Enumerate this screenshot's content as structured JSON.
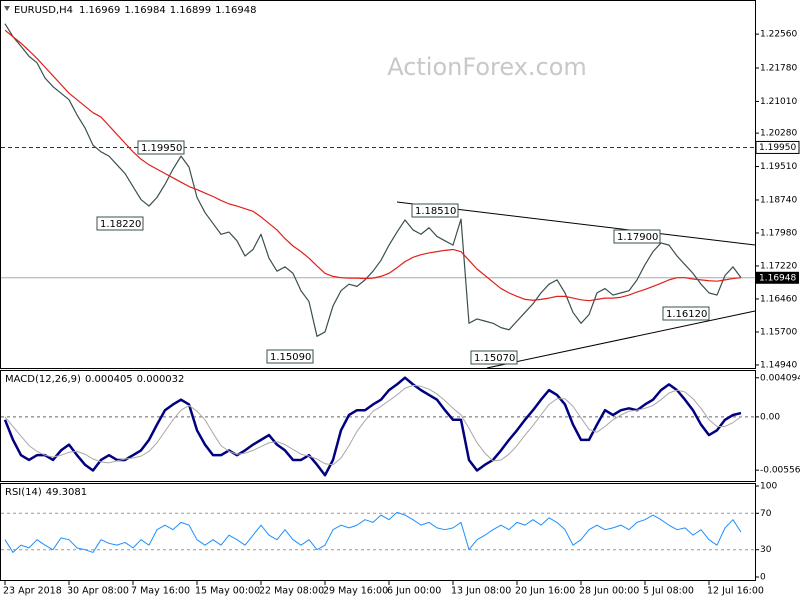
{
  "watermark": "ActionForex.com",
  "chart_data": [
    {
      "type": "line",
      "title": "EURUSD,H4",
      "ohlc_last": [
        1.16969,
        1.16984,
        1.16899,
        1.16948
      ],
      "categories": [
        "23 Apr 2018",
        null,
        null,
        null,
        null,
        null,
        null,
        null,
        "30 Apr 08:00",
        null,
        null,
        null,
        null,
        null,
        null,
        null,
        "7 May 16:00",
        null,
        null,
        null,
        null,
        null,
        null,
        null,
        "15 May 00:00",
        null,
        null,
        null,
        null,
        null,
        null,
        null,
        "22 May 08:00",
        null,
        null,
        null,
        null,
        null,
        null,
        null,
        "29 May 16:00",
        null,
        null,
        null,
        null,
        null,
        null,
        null,
        "6 Jun 00:00",
        null,
        null,
        null,
        null,
        null,
        null,
        null,
        "13 Jun 08:00",
        null,
        null,
        null,
        null,
        null,
        null,
        null,
        "20 Jun 16:00",
        null,
        null,
        null,
        null,
        null,
        null,
        null,
        "28 Jun 00:00",
        null,
        null,
        null,
        null,
        null,
        null,
        null,
        "5 Jul 08:00",
        null,
        null,
        null,
        null,
        null,
        null,
        null,
        "12 Jul 16:00",
        null,
        null,
        null,
        null
      ],
      "series": [
        {
          "color": "#3a4f4f",
          "values": [
            1.228,
            1.225,
            1.2228,
            1.2205,
            1.219,
            1.2155,
            1.2135,
            1.212,
            1.2105,
            1.207,
            1.204,
            1.2,
            1.1985,
            1.1975,
            1.1955,
            1.1935,
            1.1905,
            1.1875,
            1.186,
            1.188,
            1.191,
            1.1945,
            1.1975,
            1.195,
            1.188,
            1.1845,
            1.182,
            1.1795,
            1.18,
            1.178,
            1.1745,
            1.176,
            1.1795,
            1.174,
            1.171,
            1.172,
            1.1705,
            1.1665,
            1.164,
            1.156,
            1.157,
            1.163,
            1.1665,
            1.168,
            1.1675,
            1.169,
            1.171,
            1.1735,
            1.177,
            1.18,
            1.1828,
            1.1805,
            1.1795,
            1.181,
            1.179,
            1.178,
            1.177,
            1.183,
            1.159,
            1.16,
            1.1595,
            1.159,
            1.158,
            1.1575,
            1.1595,
            1.1615,
            1.1635,
            1.166,
            1.168,
            1.169,
            1.166,
            1.1615,
            1.159,
            1.161,
            1.166,
            1.167,
            1.1655,
            1.166,
            1.1665,
            1.169,
            1.1725,
            1.1755,
            1.1775,
            1.177,
            1.1745,
            1.1725,
            1.1705,
            1.168,
            1.166,
            1.1655,
            1.17,
            1.172,
            1.16948
          ]
        },
        {
          "color": "#e0201b",
          "values": [
            1.2265,
            1.225,
            1.2235,
            1.2218,
            1.22,
            1.218,
            1.216,
            1.214,
            1.212,
            1.2105,
            1.209,
            1.2075,
            1.2065,
            1.2045,
            1.2025,
            1.2005,
            1.1985,
            1.1968,
            1.1955,
            1.1945,
            1.1935,
            1.1925,
            1.1915,
            1.1905,
            1.1898,
            1.189,
            1.1882,
            1.1873,
            1.1865,
            1.186,
            1.1854,
            1.1848,
            1.1835,
            1.182,
            1.1805,
            1.1785,
            1.1768,
            1.1755,
            1.174,
            1.1722,
            1.1705,
            1.1698,
            1.1695,
            1.1694,
            1.1694,
            1.1693,
            1.1694,
            1.1698,
            1.1705,
            1.1718,
            1.1732,
            1.1742,
            1.1748,
            1.1752,
            1.1755,
            1.1758,
            1.176,
            1.1755,
            1.1735,
            1.1715,
            1.17,
            1.1685,
            1.167,
            1.166,
            1.1652,
            1.1645,
            1.1643,
            1.1645,
            1.1648,
            1.1652,
            1.1652,
            1.1648,
            1.1644,
            1.1642,
            1.1645,
            1.1648,
            1.1648,
            1.165,
            1.1655,
            1.1662,
            1.1668,
            1.1675,
            1.1682,
            1.169,
            1.1695,
            1.1695,
            1.1692,
            1.169,
            1.1688,
            1.1687,
            1.169,
            1.1693,
            1.1695
          ]
        }
      ],
      "ylim": [
        1.1487,
        1.233
      ],
      "yticks": [
        {
          "value": 1.2256,
          "label": "1.22560"
        },
        {
          "value": 1.2178,
          "label": "1.21780"
        },
        {
          "value": 1.2101,
          "label": "1.21010"
        },
        {
          "value": 1.2028,
          "label": "1.20280"
        },
        {
          "value": 1.1951,
          "label": "1.19510"
        },
        {
          "value": 1.1874,
          "label": "1.18740"
        },
        {
          "value": 1.1798,
          "label": "1.17980"
        },
        {
          "value": 1.1722,
          "label": "1.17220"
        },
        {
          "value": 1.1646,
          "label": "1.16460"
        },
        {
          "value": 1.157,
          "label": "1.15700"
        },
        {
          "value": 1.1494,
          "label": "1.14940"
        }
      ],
      "hline": {
        "value": 1.1995,
        "label": "1.19950"
      },
      "last_price": 1.16948,
      "annotations": [
        "1.19950",
        "1.18220",
        "1.18510",
        "1.17900",
        "1.16120",
        "1.15090",
        "1.15070"
      ]
    },
    {
      "type": "line",
      "title": "MACD(12,26,9)",
      "last_values": [
        0.000405,
        3.2e-05
      ],
      "series": [
        {
          "color": "#000080",
          "values": [
            -0.0003,
            -0.0024,
            -0.004,
            -0.0045,
            -0.004,
            -0.004,
            -0.0045,
            -0.0035,
            -0.0029,
            -0.004,
            -0.005,
            -0.0056,
            -0.0045,
            -0.004,
            -0.0045,
            -0.0045,
            -0.004,
            -0.0035,
            -0.0024,
            -0.0008,
            0.0007,
            0.0013,
            0.0018,
            0.0013,
            -0.0014,
            -0.0029,
            -0.004,
            -0.004,
            -0.0035,
            -0.004,
            -0.0035,
            -0.0029,
            -0.0024,
            -0.0019,
            -0.0029,
            -0.0035,
            -0.0045,
            -0.0045,
            -0.004,
            -0.005,
            -0.0061,
            -0.0045,
            -0.0014,
            0.0002,
            0.0007,
            0.0007,
            0.0013,
            0.0018,
            0.0028,
            0.0034,
            0.0041,
            0.0034,
            0.0028,
            0.0023,
            0.0018,
            0.0007,
            -0.0003,
            -0.0003,
            -0.0045,
            -0.0056,
            -0.005,
            -0.0045,
            -0.0035,
            -0.0024,
            -0.0014,
            -0.0003,
            0.0007,
            0.0018,
            0.0028,
            0.0023,
            0.0013,
            -0.0008,
            -0.0024,
            -0.0024,
            -0.0008,
            0.0007,
            0.0002,
            0.0007,
            0.0009,
            0.0007,
            0.0013,
            0.0018,
            0.0028,
            0.0034,
            0.0028,
            0.0018,
            0.0007,
            -0.0008,
            -0.0019,
            -0.0014,
            -0.0003,
            0.0002,
            0.000405
          ]
        },
        {
          "color": "#a8a8a8",
          "values": [
            0.0,
            -0.001,
            -0.002,
            -0.003,
            -0.0036,
            -0.004,
            -0.0042,
            -0.004,
            -0.0037,
            -0.0036,
            -0.0039,
            -0.0044,
            -0.0047,
            -0.0048,
            -0.0046,
            -0.0044,
            -0.0043,
            -0.0041,
            -0.0036,
            -0.0027,
            -0.0015,
            -0.0003,
            0.0007,
            0.0012,
            0.0006,
            -0.0003,
            -0.0017,
            -0.003,
            -0.0036,
            -0.0039,
            -0.0038,
            -0.0035,
            -0.0031,
            -0.0027,
            -0.0026,
            -0.0029,
            -0.0034,
            -0.0039,
            -0.0041,
            -0.0044,
            -0.0049,
            -0.005,
            -0.0043,
            -0.003,
            -0.0015,
            -0.0004,
            0.0006,
            0.0011,
            0.0017,
            0.0023,
            0.003,
            0.0033,
            0.0032,
            0.0029,
            0.0024,
            0.0017,
            0.0009,
            0.0002,
            -0.0012,
            -0.0027,
            -0.0038,
            -0.0046,
            -0.0045,
            -0.0039,
            -0.003,
            -0.0019,
            -0.0009,
            0.0002,
            0.0013,
            0.0019,
            0.0019,
            0.0011,
            -0.0001,
            -0.0013,
            -0.0016,
            -0.001,
            -0.0003,
            0.0002,
            0.0006,
            0.0007,
            0.0009,
            0.0012,
            0.0018,
            0.0025,
            0.0028,
            0.0026,
            0.0019,
            0.0009,
            -0.0003,
            -0.001,
            -0.001,
            -0.0006,
            3.2e-05
          ]
        }
      ],
      "ylim": [
        -0.0067,
        0.0048
      ],
      "yticks": [
        0.004094,
        {
          "value": 0,
          "label": "0.00"
        },
        -0.005568
      ],
      "zero_line": true
    },
    {
      "type": "line",
      "title": "RSI(14)",
      "last_value": 49.3081,
      "series": [
        {
          "color": "#1e90ff",
          "values": [
            41,
            27,
            35,
            32,
            41,
            35,
            30,
            43,
            41,
            32,
            30,
            27,
            41,
            37,
            35,
            38,
            32,
            41,
            35,
            52,
            57,
            52,
            60,
            57,
            41,
            35,
            41,
            35,
            46,
            41,
            35,
            46,
            57,
            46,
            41,
            52,
            41,
            35,
            41,
            30,
            35,
            52,
            57,
            54,
            57,
            63,
            60,
            68,
            63,
            71,
            68,
            63,
            57,
            60,
            54,
            52,
            54,
            60,
            30,
            41,
            46,
            52,
            57,
            52,
            60,
            57,
            63,
            57,
            65,
            60,
            52,
            35,
            41,
            52,
            57,
            52,
            54,
            57,
            52,
            60,
            63,
            68,
            63,
            57,
            52,
            54,
            46,
            52,
            41,
            35,
            54,
            63,
            49.3081
          ]
        }
      ],
      "ylim": [
        0,
        100
      ],
      "yticks": [
        0,
        30,
        70,
        100
      ],
      "grid": true
    }
  ]
}
